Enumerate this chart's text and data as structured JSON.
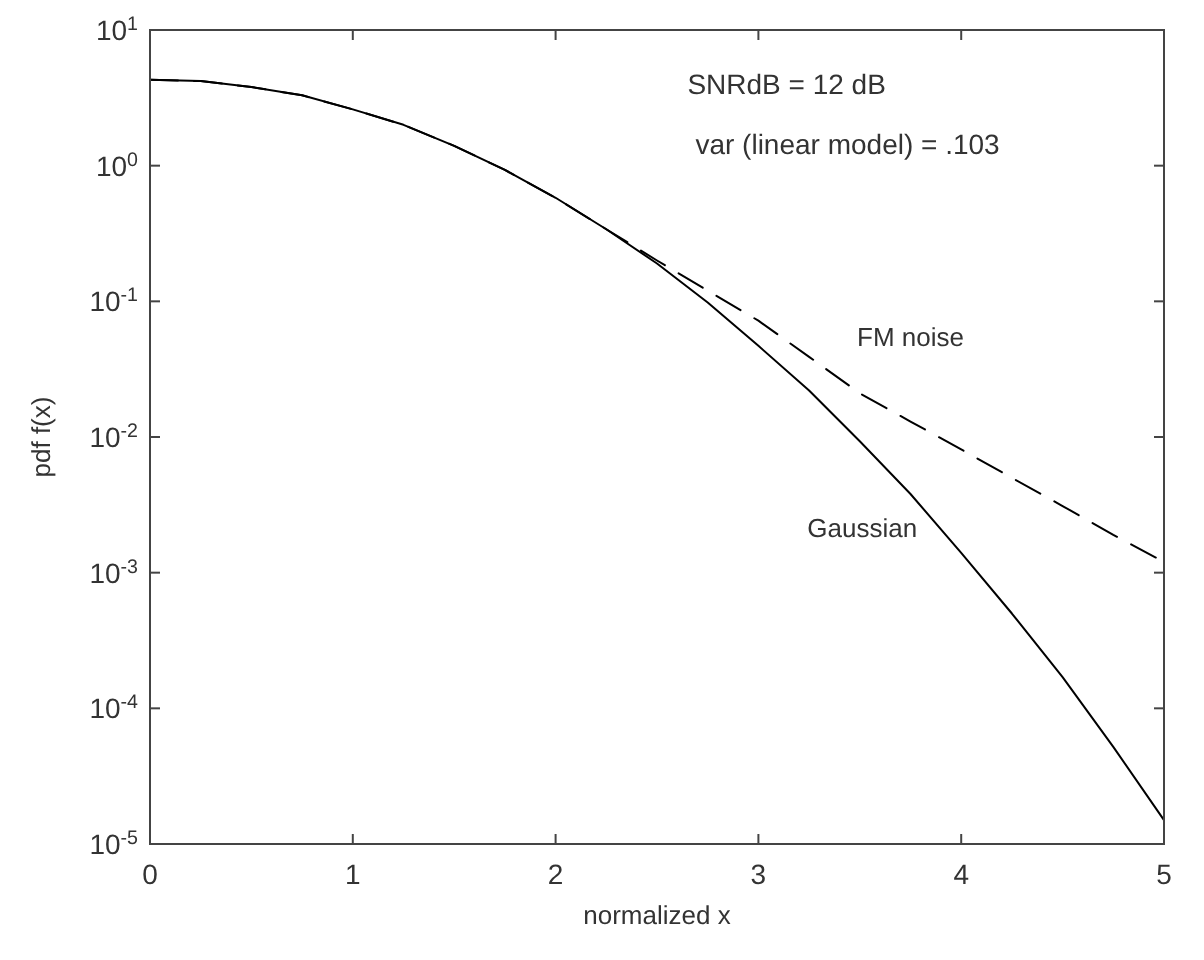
{
  "chart_data": {
    "type": "line",
    "xlabel": "normalized x",
    "ylabel": "pdf f(x)",
    "log": "y",
    "xlim": [
      0,
      5
    ],
    "xticks": [
      0,
      1,
      2,
      3,
      4,
      5
    ],
    "ylim": [
      1e-05,
      10
    ],
    "yticks": [
      {
        "value": 10,
        "label": "10$^{1}$"
      },
      {
        "value": 1,
        "label": "10$^{0}$"
      },
      {
        "value": 0.1,
        "label": "10$^{-1}$"
      },
      {
        "value": 0.01,
        "label": "10$^{-2}$"
      },
      {
        "value": 0.001,
        "label": "10$^{-3}$"
      },
      {
        "value": 0.0001,
        "label": "10$^{-4}$"
      },
      {
        "value": 1e-05,
        "label": "10$^{-5}$"
      }
    ],
    "grid": false,
    "marker": "none",
    "annotations": [
      "SNRdB = 12 dB",
      "var (linear model) = .103"
    ],
    "x": [
      0,
      0.25,
      0.5,
      0.75,
      1,
      1.25,
      1.5,
      1.75,
      2,
      2.25,
      2.5,
      2.75,
      3,
      3.25,
      3.5,
      3.75,
      4,
      4.25,
      4.5,
      4.75,
      5
    ],
    "series": [
      {
        "name": "FM noise",
        "color": "#000000",
        "line_style": "dashed",
        "values": [
          4.3,
          4.2,
          3.8,
          3.3,
          2.6,
          2.0,
          1.4,
          0.93,
          0.58,
          0.34,
          0.2,
          0.12,
          0.072,
          0.039,
          0.021,
          0.013,
          0.0081,
          0.005,
          0.0031,
          0.0019,
          0.0012
        ]
      },
      {
        "name": "Gaussian",
        "color": "#000000",
        "line_style": "solid",
        "values": [
          4.3,
          4.2,
          3.8,
          3.3,
          2.6,
          2.0,
          1.4,
          0.93,
          0.58,
          0.34,
          0.19,
          0.098,
          0.047,
          0.022,
          0.0093,
          0.0038,
          0.0014,
          0.0005,
          0.00017,
          5.2e-05,
          1.5e-05
        ]
      }
    ]
  }
}
